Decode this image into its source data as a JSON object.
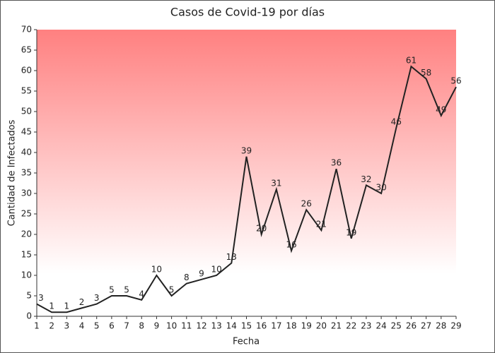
{
  "chart_data": {
    "type": "line",
    "title": "Casos de Covid-19 por días",
    "x_label": "Fecha",
    "y_label": "Cantidad de Infectados",
    "x": [
      1,
      2,
      3,
      4,
      5,
      6,
      7,
      8,
      9,
      10,
      11,
      12,
      13,
      14,
      15,
      16,
      17,
      18,
      19,
      20,
      21,
      22,
      23,
      24,
      25,
      26,
      27,
      28,
      29
    ],
    "series": [
      {
        "name": "Casos",
        "color": "#222222",
        "values": [
          3,
          1,
          1,
          2,
          3,
          5,
          5,
          4,
          10,
          5,
          8,
          9,
          10,
          13,
          39,
          20,
          31,
          16,
          26,
          21,
          36,
          19,
          32,
          30,
          46,
          61,
          58,
          49,
          56
        ]
      }
    ],
    "xlim": [
      1,
      29
    ],
    "xticks": [
      1,
      2,
      3,
      4,
      5,
      6,
      7,
      8,
      9,
      10,
      11,
      12,
      13,
      14,
      15,
      16,
      17,
      18,
      19,
      20,
      21,
      22,
      23,
      24,
      25,
      26,
      27,
      28,
      29
    ],
    "ylim": [
      0,
      70
    ],
    "yticks": [
      0,
      5,
      10,
      15,
      20,
      25,
      30,
      35,
      40,
      45,
      50,
      55,
      60,
      65,
      70
    ],
    "data_labels": true
  }
}
